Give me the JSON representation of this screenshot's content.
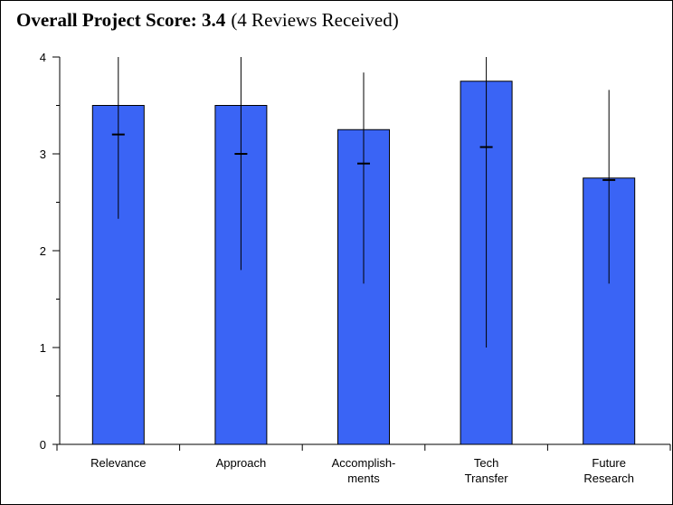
{
  "chart_data": {
    "type": "bar",
    "title": "Overall Project Score: 3.4",
    "subtitle": "(4 Reviews Received)",
    "categories": [
      [
        "Relevance"
      ],
      [
        "Approach"
      ],
      [
        "Accomplish-",
        "ments"
      ],
      [
        "Tech",
        "Transfer"
      ],
      [
        "Future",
        "Research"
      ]
    ],
    "values": [
      3.5,
      3.5,
      3.25,
      3.75,
      2.75
    ],
    "markers": [
      3.2,
      3.0,
      2.9,
      3.07,
      2.73
    ],
    "error_high": [
      4.0,
      4.0,
      3.84,
      4.0,
      3.66
    ],
    "error_low": [
      2.33,
      1.8,
      1.66,
      1.0,
      1.66
    ],
    "color": "#3a64f5",
    "ylim": [
      0,
      4
    ],
    "yticks": [
      0,
      1,
      2,
      3,
      4
    ],
    "yminor": [
      0.5,
      1.5,
      2.5,
      3.5
    ]
  }
}
